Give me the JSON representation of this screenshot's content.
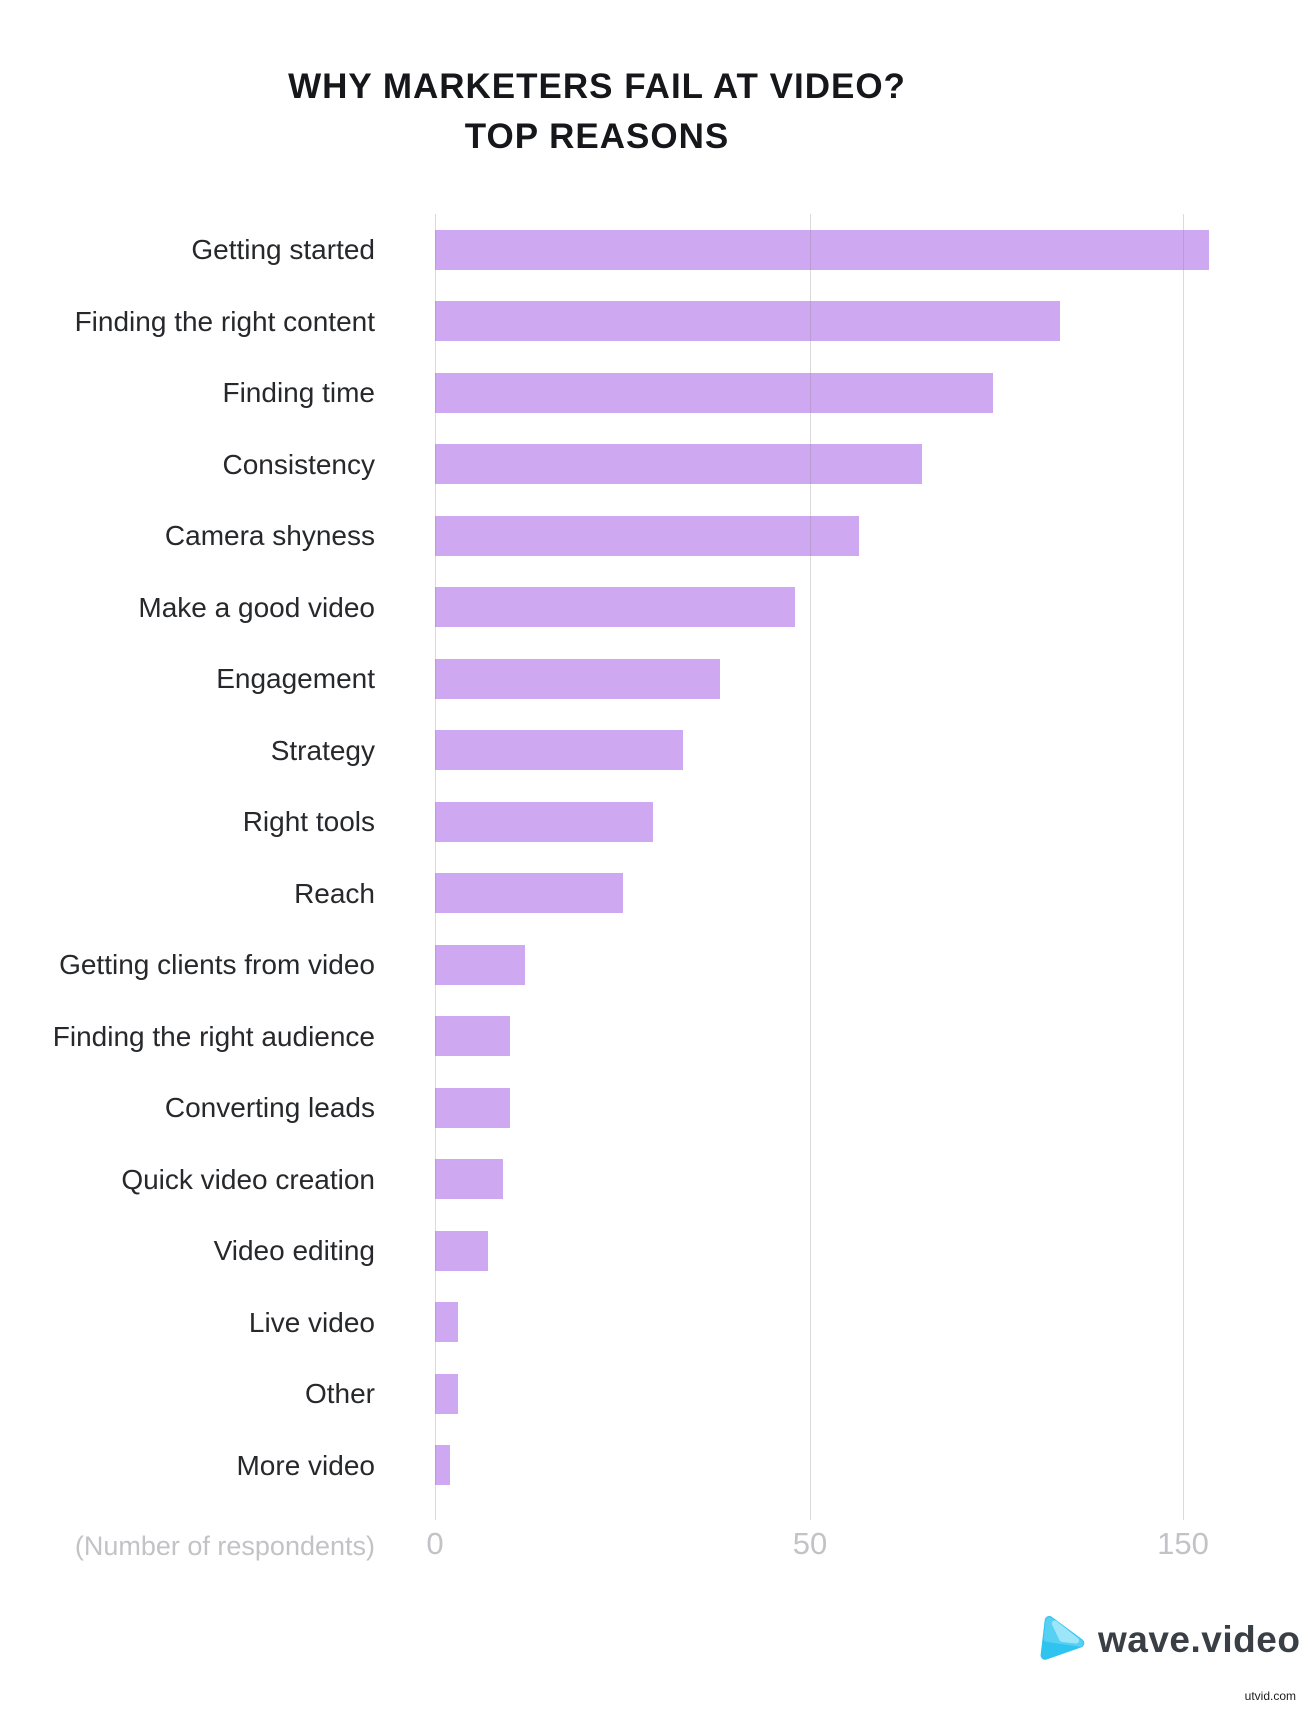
{
  "title": {
    "line1": "WHY MARKETERS FAIL AT VIDEO?",
    "line2": "TOP REASONS"
  },
  "chart_data": {
    "type": "bar",
    "orientation": "horizontal",
    "title": "WHY MARKETERS FAIL AT VIDEO? TOP REASONS",
    "xlabel": "(Number of respondents)",
    "categories": [
      "Getting started",
      "Finding the right content",
      "Finding time",
      "Consistency",
      "Camera shyness",
      "Make a good video",
      "Engagement",
      "Strategy",
      "Right tools",
      "Reach",
      "Getting clients from video",
      "Finding the right audience",
      "Converting leads",
      "Quick video creation",
      "Video editing",
      "Live video",
      "Other",
      "More video"
    ],
    "values": [
      157,
      117,
      99,
      80,
      63,
      48,
      38,
      33,
      29,
      25,
      12,
      10,
      10,
      9,
      7,
      3,
      3,
      2
    ],
    "axis": {
      "ticks": [
        {
          "value": 0,
          "label": "0"
        },
        {
          "value": 50,
          "label": "50"
        },
        {
          "value": 150,
          "label": "150"
        }
      ]
    },
    "grid": "vertical-lines-on",
    "legend": false,
    "colors": {
      "bar": "#cea9f2",
      "gridline": "#dbdbdb",
      "axis_text": "#c3c3c7",
      "category_text": "#26282b",
      "title_text": "#15171a"
    }
  },
  "footer": {
    "logo_text": "wave.video",
    "logo_icon": "play-triangle-icon",
    "logo_colors": {
      "dark": "#2fc3ef",
      "mid": "#56d0f3",
      "light": "#9de5f8"
    }
  },
  "watermark": "utvid.com"
}
